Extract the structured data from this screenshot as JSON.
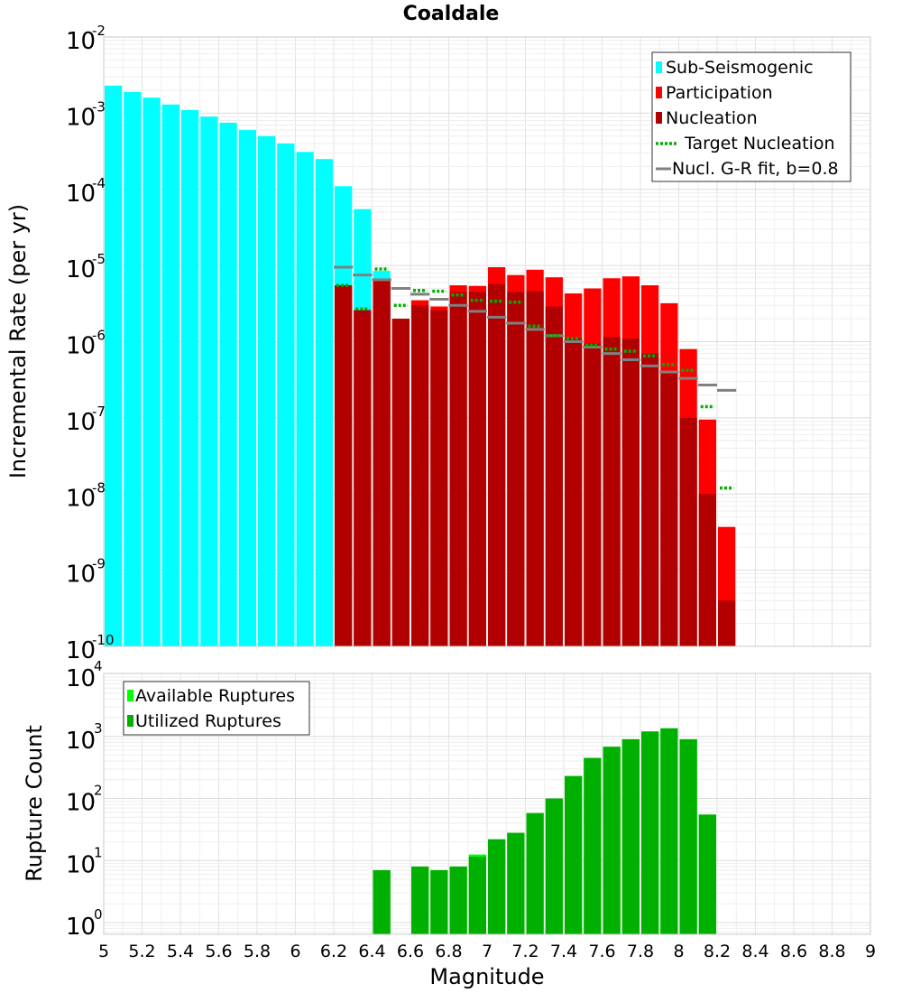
{
  "chart_data": [
    {
      "type": "bar",
      "title": "Coaldale",
      "ylabel": "Incremental Rate (per yr)",
      "xlabel": "",
      "xlim": [
        5,
        9
      ],
      "ylim": [
        1e-10,
        0.01
      ],
      "yscale": "log",
      "bin_width": 0.1,
      "legend_position": "top-right",
      "legend": [
        "Sub-Seismogenic",
        "Participation",
        "Nucleation",
        "Target Nucleation",
        "Nucl. G-R fit, b=0.8"
      ],
      "colors": {
        "sub_seismogenic": "#00ffff",
        "participation": "#ff0000",
        "nucleation": "#b20000",
        "target_nucleation": "#00b000",
        "gr_fit": "#808080"
      },
      "series": [
        {
          "name": "Sub-Seismogenic",
          "x": [
            5.05,
            5.15,
            5.25,
            5.35,
            5.45,
            5.55,
            5.65,
            5.75,
            5.85,
            5.95,
            6.05,
            6.15,
            6.25,
            6.35,
            6.45
          ],
          "values": [
            0.0023,
            0.0019,
            0.0016,
            0.0013,
            0.0011,
            0.0009,
            0.00075,
            0.0006,
            0.0005,
            0.0004,
            0.00031,
            0.00025,
            0.00011,
            5.5e-05,
            8.5e-06
          ]
        },
        {
          "name": "Participation",
          "x": [
            6.25,
            6.35,
            6.45,
            6.55,
            6.65,
            6.75,
            6.85,
            6.95,
            7.05,
            7.15,
            7.25,
            7.35,
            7.45,
            7.55,
            7.65,
            7.75,
            7.85,
            7.95,
            8.05,
            8.15,
            8.25
          ],
          "values": [
            5.5e-06,
            2.6e-06,
            6.5e-06,
            2e-06,
            3.5e-06,
            2.9e-06,
            5.5e-06,
            5.4e-06,
            9.5e-06,
            7.5e-06,
            8.8e-06,
            7e-06,
            4.3e-06,
            5e-06,
            6.8e-06,
            7.2e-06,
            5.5e-06,
            3.2e-06,
            8e-07,
            9.5e-08,
            3.7e-09
          ]
        },
        {
          "name": "Nucleation",
          "x": [
            6.25,
            6.35,
            6.45,
            6.55,
            6.65,
            6.75,
            6.85,
            6.95,
            7.05,
            7.15,
            7.25,
            7.35,
            7.45,
            7.55,
            7.65,
            7.75,
            7.85,
            7.95,
            8.05,
            8.15,
            8.25
          ],
          "values": [
            5.5e-06,
            2.6e-06,
            6.2e-06,
            2e-06,
            3e-06,
            2.6e-06,
            4.5e-06,
            4.5e-06,
            5.7e-06,
            4.5e-06,
            4.6e-06,
            2.9e-06,
            1.1e-06,
            9.5e-07,
            1.15e-06,
            1.1e-06,
            7e-07,
            4e-07,
            1e-07,
            1e-08,
            4e-10
          ]
        },
        {
          "name": "Target Nucleation",
          "x": [
            6.25,
            6.35,
            6.45,
            6.55,
            6.65,
            6.75,
            6.85,
            6.95,
            7.05,
            7.15,
            7.25,
            7.35,
            7.45,
            7.55,
            7.65,
            7.75,
            7.85,
            7.95,
            8.05,
            8.15,
            8.25
          ],
          "values": [
            5.5e-06,
            2.7e-06,
            9e-06,
            3e-06,
            4.7e-06,
            4.6e-06,
            4.1e-06,
            3.5e-06,
            3.4e-06,
            3.3e-06,
            1.6e-06,
            1.2e-06,
            1.1e-06,
            9e-07,
            8e-07,
            7.5e-07,
            6.5e-07,
            5e-07,
            4.2e-07,
            1.4e-07,
            1.2e-08
          ]
        },
        {
          "name": "Nucl. G-R fit, b=0.8",
          "x": [
            6.25,
            6.35,
            6.45,
            6.55,
            6.65,
            6.75,
            6.85,
            6.95,
            7.05,
            7.15,
            7.25,
            7.35,
            7.45,
            7.55,
            7.65,
            7.75,
            7.85,
            7.95,
            8.05,
            8.15,
            8.25
          ],
          "values": [
            9.5e-06,
            7.5e-06,
            6.5e-06,
            5e-06,
            4.2e-06,
            3.6e-06,
            3e-06,
            2.5e-06,
            2.1e-06,
            1.75e-06,
            1.45e-06,
            1.2e-06,
            1e-06,
            8.5e-07,
            7e-07,
            5.8e-07,
            4.8e-07,
            4e-07,
            3.3e-07,
            2.7e-07,
            2.3e-07
          ]
        }
      ]
    },
    {
      "type": "bar",
      "title": "",
      "ylabel": "Rupture Count",
      "xlabel": "Magnitude",
      "xlim": [
        5,
        9
      ],
      "ylim": [
        0.7,
        10000
      ],
      "yscale": "log",
      "bin_width": 0.1,
      "legend_position": "top-left",
      "legend": [
        "Available Ruptures",
        "Utilized Ruptures"
      ],
      "colors": {
        "available": "#00ff00",
        "utilized": "#00b000"
      },
      "xticks": [
        "5",
        "5.2",
        "5.4",
        "5.6",
        "5.8",
        "6",
        "6.2",
        "6.4",
        "6.6",
        "6.8",
        "7",
        "7.2",
        "7.4",
        "7.6",
        "7.8",
        "8",
        "8.2",
        "8.4",
        "8.6",
        "8.8",
        "9"
      ],
      "series": [
        {
          "name": "Available Ruptures",
          "x": [
            6.45,
            6.65,
            6.75,
            6.85,
            6.95,
            7.05,
            7.15,
            7.25,
            7.35,
            7.45,
            7.55,
            7.65,
            7.75,
            7.85,
            7.95,
            8.05,
            8.15
          ],
          "values": [
            7,
            8,
            7,
            8,
            12.5,
            22,
            28,
            58,
            100,
            230,
            450,
            680,
            900,
            1200,
            1350,
            900,
            55
          ]
        },
        {
          "name": "Utilized Ruptures",
          "x": [
            6.45,
            6.65,
            6.75,
            6.85,
            6.95,
            7.05,
            7.15,
            7.25,
            7.35,
            7.45,
            7.55,
            7.65,
            7.75,
            7.85,
            7.95,
            8.05,
            8.15
          ],
          "values": [
            7,
            8,
            7,
            8,
            11.5,
            22,
            28,
            58,
            100,
            230,
            450,
            680,
            900,
            1200,
            1350,
            900,
            55
          ]
        }
      ]
    }
  ]
}
